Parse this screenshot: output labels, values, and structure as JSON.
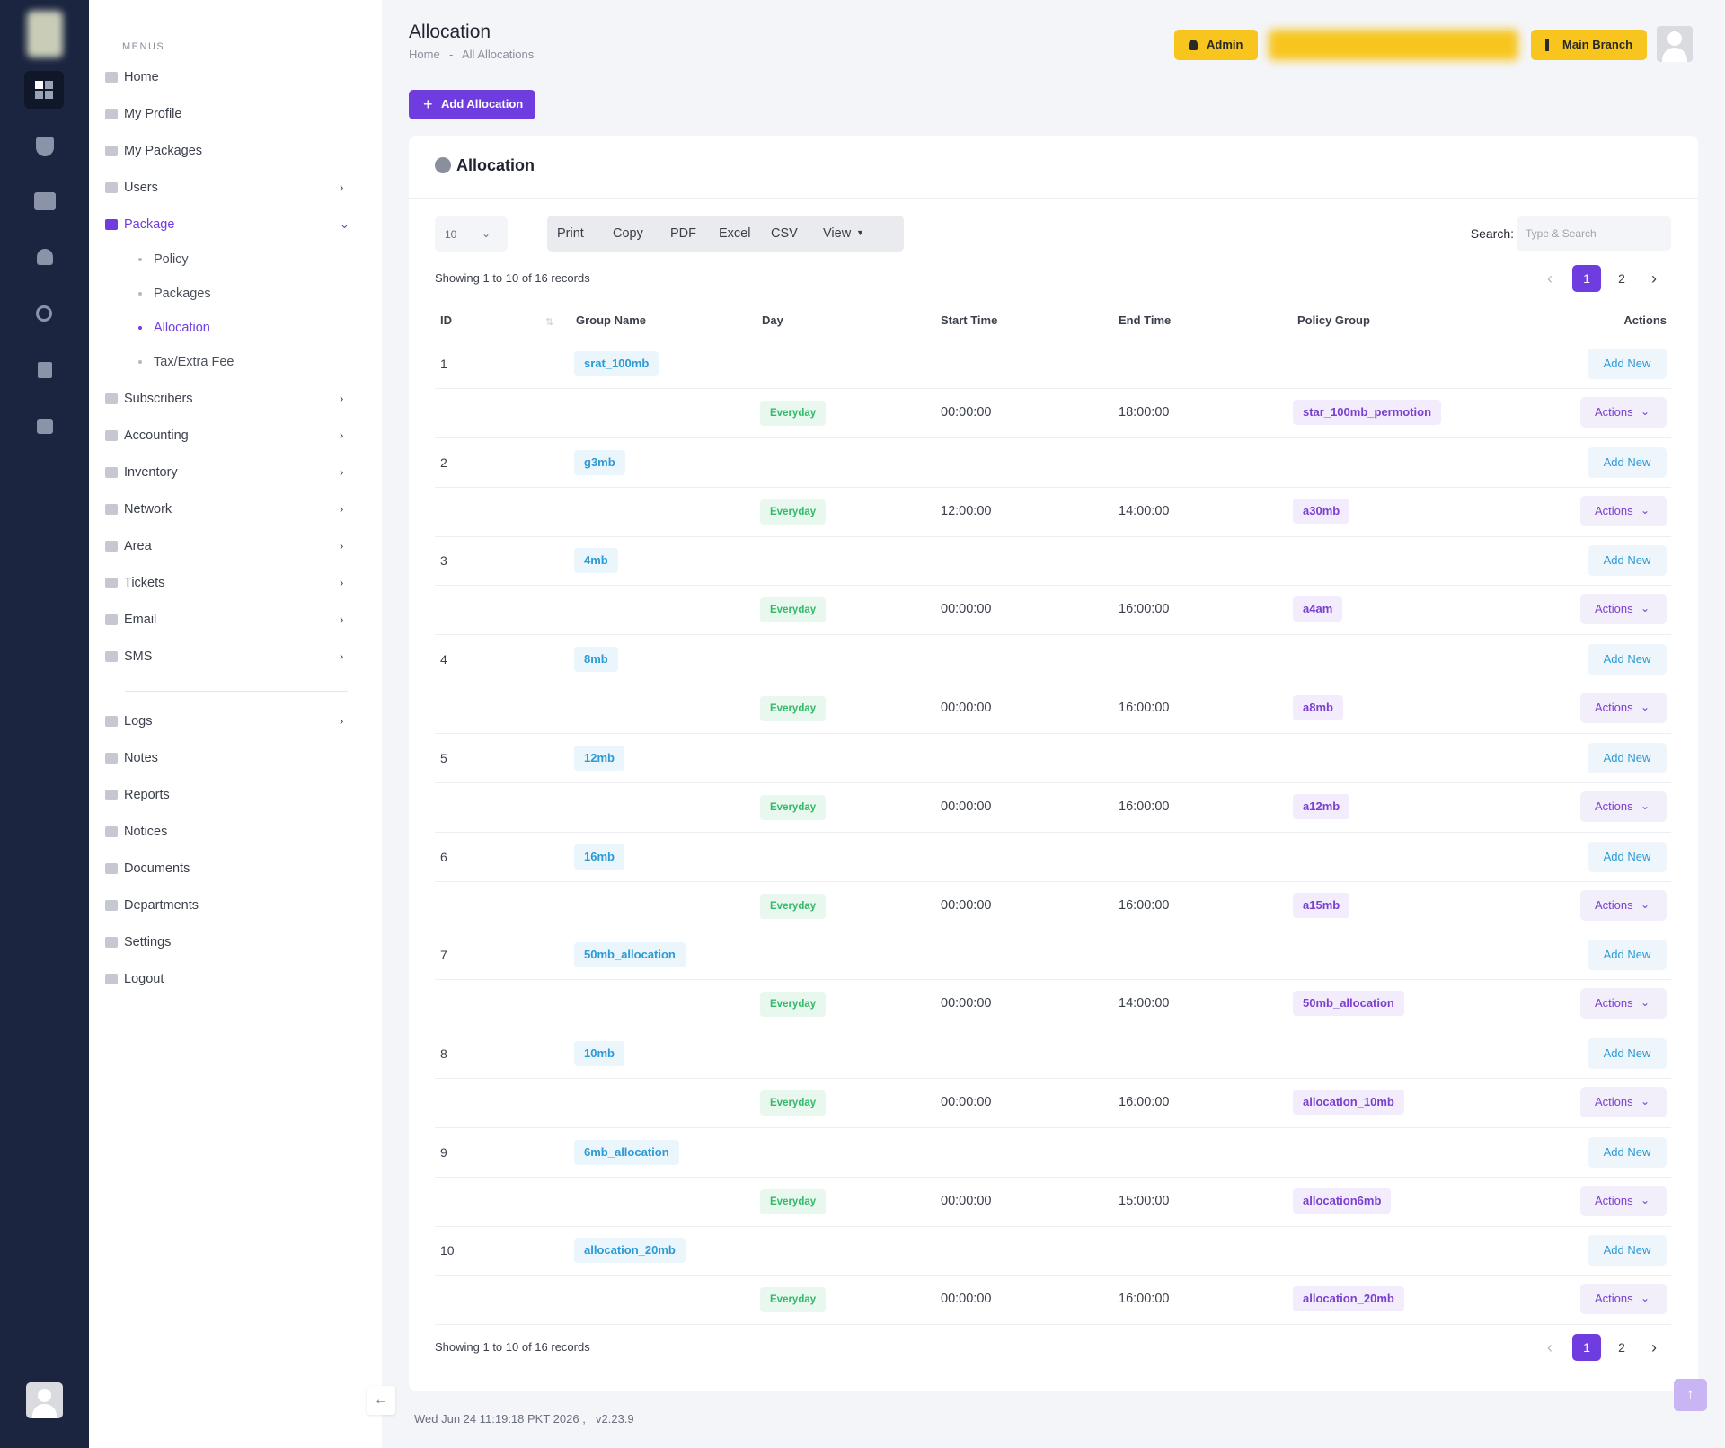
{
  "header": {
    "title": "Allocation",
    "breadcrumb_home": "Home",
    "breadcrumb_sep": "-",
    "breadcrumb_current": "All Allocations",
    "admin": "Admin",
    "branch": "Main Branch"
  },
  "sidebar": {
    "heading": "MENUS",
    "items": [
      {
        "label": "Home",
        "submenu": false
      },
      {
        "label": "My Profile",
        "submenu": false
      },
      {
        "label": "My Packages",
        "submenu": false
      },
      {
        "label": "Users",
        "submenu": true
      },
      {
        "label": "Package",
        "submenu": true,
        "expanded": true,
        "children": [
          {
            "label": "Policy"
          },
          {
            "label": "Packages"
          },
          {
            "label": "Allocation",
            "active": true
          },
          {
            "label": "Tax/Extra Fee"
          }
        ]
      },
      {
        "label": "Subscribers",
        "submenu": true
      },
      {
        "label": "Accounting",
        "submenu": true
      },
      {
        "label": "Inventory",
        "submenu": true
      },
      {
        "label": "Network",
        "submenu": true
      },
      {
        "label": "Area",
        "submenu": true
      },
      {
        "label": "Tickets",
        "submenu": true
      },
      {
        "label": "Email",
        "submenu": true
      },
      {
        "label": "SMS",
        "submenu": true
      }
    ],
    "bottom_items": [
      {
        "label": "Logs",
        "submenu": true
      },
      {
        "label": "Notes",
        "submenu": false
      },
      {
        "label": "Reports",
        "submenu": false
      },
      {
        "label": "Notices",
        "submenu": false
      },
      {
        "label": "Documents",
        "submenu": false
      },
      {
        "label": "Departments",
        "submenu": false
      },
      {
        "label": "Settings",
        "submenu": false
      },
      {
        "label": "Logout",
        "submenu": false
      }
    ]
  },
  "toolbar": {
    "add_button": "Add Allocation"
  },
  "card": {
    "title": "Allocation",
    "page_length": 10,
    "buttons": [
      "Print",
      "Copy",
      "PDF",
      "Excel",
      "CSV",
      "View"
    ],
    "search_label": "Search:",
    "search_placeholder": "Type & Search",
    "info": "Showing 1 to 10 of 16 records",
    "pages": [
      1,
      2
    ]
  },
  "table": {
    "columns": [
      "ID",
      "Group Name",
      "Day",
      "Start Time",
      "End Time",
      "Policy Group",
      "Actions"
    ],
    "add_new": "Add New",
    "actions": "Actions",
    "rows": [
      {
        "id": 1,
        "group": "srat_100mb",
        "day": "Everyday",
        "start": "00:00:00",
        "end": "18:00:00",
        "policy": "star_100mb_permotion"
      },
      {
        "id": 2,
        "group": "g3mb",
        "day": "Everyday",
        "start": "12:00:00",
        "end": "14:00:00",
        "policy": "a30mb"
      },
      {
        "id": 3,
        "group": "4mb",
        "day": "Everyday",
        "start": "00:00:00",
        "end": "16:00:00",
        "policy": "a4am"
      },
      {
        "id": 4,
        "group": "8mb",
        "day": "Everyday",
        "start": "00:00:00",
        "end": "16:00:00",
        "policy": "a8mb"
      },
      {
        "id": 5,
        "group": "12mb",
        "day": "Everyday",
        "start": "00:00:00",
        "end": "16:00:00",
        "policy": "a12mb"
      },
      {
        "id": 6,
        "group": "16mb",
        "day": "Everyday",
        "start": "00:00:00",
        "end": "16:00:00",
        "policy": "a15mb"
      },
      {
        "id": 7,
        "group": "50mb_allocation",
        "day": "Everyday",
        "start": "00:00:00",
        "end": "14:00:00",
        "policy": "50mb_allocation"
      },
      {
        "id": 8,
        "group": "10mb",
        "day": "Everyday",
        "start": "00:00:00",
        "end": "16:00:00",
        "policy": "allocation_10mb"
      },
      {
        "id": 9,
        "group": "6mb_allocation",
        "day": "Everyday",
        "start": "00:00:00",
        "end": "15:00:00",
        "policy": "allocation6mb"
      },
      {
        "id": 10,
        "group": "allocation_20mb",
        "day": "Everyday",
        "start": "00:00:00",
        "end": "16:00:00",
        "policy": "allocation_20mb"
      }
    ]
  },
  "footer": {
    "timestamp": "Wed Jun 24 11:19:18 PKT 2026 ,",
    "version": "v2.23.9"
  }
}
